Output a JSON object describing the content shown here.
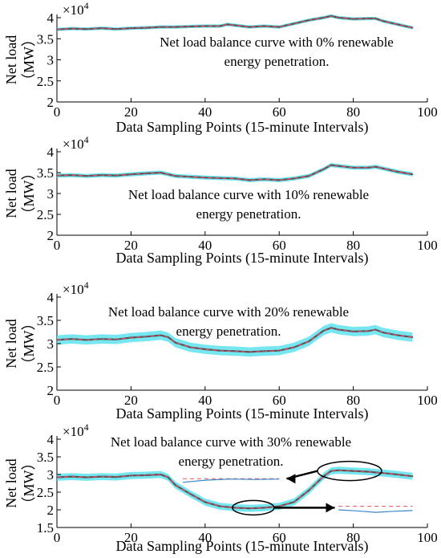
{
  "colors": {
    "band": "#5ee3ef",
    "line": "#555555",
    "dash": "#e0506a",
    "callout_solid": "#3a86c8",
    "callout_dash": "#e05060"
  },
  "chart_data": [
    {
      "type": "line",
      "annotation": [
        "Net load balance curve with 0% renewable",
        "energy penetration."
      ],
      "xlabel": "Data Sampling Points (15-minute Intervals)",
      "ylabel": [
        "Net load",
        "（MW）"
      ],
      "y_multiplier": "×10",
      "y_multiplier_exp": "4",
      "xlim": [
        0,
        100
      ],
      "ylim": [
        2,
        4
      ],
      "xticks": [
        "0",
        "20",
        "40",
        "60",
        "80",
        "100"
      ],
      "yticks": [
        "2",
        "2.5",
        "3",
        "3.5",
        "4"
      ],
      "x": [
        0,
        4,
        8,
        12,
        16,
        20,
        24,
        28,
        32,
        36,
        40,
        44,
        46,
        48,
        52,
        56,
        60,
        64,
        68,
        72,
        74,
        76,
        80,
        84,
        86,
        88,
        92,
        96
      ],
      "y": [
        3.72,
        3.74,
        3.73,
        3.75,
        3.73,
        3.75,
        3.76,
        3.78,
        3.78,
        3.79,
        3.8,
        3.8,
        3.84,
        3.82,
        3.78,
        3.8,
        3.78,
        3.86,
        3.94,
        4.0,
        4.04,
        4.0,
        3.97,
        3.98,
        3.98,
        3.92,
        3.84,
        3.76
      ],
      "band_halfwidth": 0.04
    },
    {
      "type": "line",
      "annotation": [
        "Net load balance curve with 10% renewable",
        "energy penetration."
      ],
      "xlabel": "Data Sampling Points (15-minute Intervals)",
      "ylabel": [
        "Net load",
        "（MW）"
      ],
      "y_multiplier": "×10",
      "y_multiplier_exp": "4",
      "xlim": [
        0,
        100
      ],
      "ylim": [
        2,
        4
      ],
      "xticks": [
        "0",
        "20",
        "40",
        "60",
        "80",
        "100"
      ],
      "yticks": [
        "2",
        "2.5",
        "3",
        "3.5",
        "4"
      ],
      "x": [
        0,
        4,
        8,
        12,
        16,
        20,
        24,
        28,
        32,
        36,
        40,
        44,
        48,
        52,
        56,
        60,
        64,
        68,
        72,
        74,
        76,
        80,
        84,
        86,
        88,
        92,
        96
      ],
      "y": [
        3.43,
        3.44,
        3.42,
        3.44,
        3.43,
        3.46,
        3.48,
        3.5,
        3.42,
        3.4,
        3.38,
        3.37,
        3.36,
        3.32,
        3.34,
        3.32,
        3.36,
        3.42,
        3.58,
        3.68,
        3.66,
        3.62,
        3.62,
        3.64,
        3.6,
        3.52,
        3.46
      ],
      "band_halfwidth": 0.05
    },
    {
      "type": "line",
      "annotation": [
        "Net load balance curve with 20% renewable",
        "energy penetration."
      ],
      "xlabel": "Data Sampling Points (15-minute Intervals)",
      "ylabel": [
        "Net load",
        "（MW）"
      ],
      "y_multiplier": "×10",
      "y_multiplier_exp": "4",
      "xlim": [
        0,
        100
      ],
      "ylim": [
        2,
        4
      ],
      "xticks": [
        "0",
        "20",
        "40",
        "60",
        "80",
        "100"
      ],
      "yticks": [
        "2",
        "2.5",
        "3",
        "3.5",
        "4"
      ],
      "x": [
        0,
        4,
        8,
        12,
        16,
        20,
        24,
        28,
        30,
        32,
        36,
        40,
        44,
        48,
        52,
        56,
        60,
        64,
        68,
        72,
        74,
        76,
        80,
        84,
        86,
        88,
        92,
        96
      ],
      "y": [
        3.08,
        3.1,
        3.08,
        3.1,
        3.09,
        3.13,
        3.15,
        3.18,
        3.14,
        3.02,
        2.92,
        2.88,
        2.85,
        2.84,
        2.82,
        2.84,
        2.85,
        2.92,
        3.05,
        3.28,
        3.34,
        3.3,
        3.26,
        3.27,
        3.3,
        3.24,
        3.18,
        3.14
      ],
      "band_halfwidth": 0.1
    },
    {
      "type": "line",
      "annotation": [
        "Net load balance curve with 30% renewable",
        "energy penetration."
      ],
      "xlabel": "Data Sampling Points (15-minute Intervals)",
      "ylabel": [
        "Net load",
        "（MW）"
      ],
      "y_multiplier": "×10",
      "y_multiplier_exp": "4",
      "xlim": [
        0,
        100
      ],
      "ylim": [
        1.5,
        4
      ],
      "xticks": [
        "0",
        "20",
        "40",
        "60",
        "80",
        "100"
      ],
      "yticks": [
        "1.5",
        "2",
        "2.5",
        "3",
        "3.5",
        "4"
      ],
      "x": [
        0,
        4,
        8,
        12,
        16,
        20,
        24,
        28,
        30,
        32,
        36,
        40,
        44,
        48,
        52,
        56,
        60,
        64,
        68,
        72,
        74,
        76,
        80,
        84,
        86,
        88,
        92,
        96
      ],
      "y": [
        2.92,
        2.94,
        2.92,
        2.94,
        2.93,
        2.97,
        2.98,
        3.0,
        2.92,
        2.7,
        2.45,
        2.22,
        2.1,
        2.06,
        2.04,
        2.06,
        2.1,
        2.22,
        2.55,
        2.95,
        3.1,
        3.12,
        3.1,
        3.08,
        3.06,
        3.04,
        3.0,
        2.95
      ],
      "band_halfwidth": 0.1,
      "callouts": [
        {
          "ellipse_center": [
            79,
            3.1
          ],
          "arrow_to": [
            62,
            2.88
          ],
          "inset_x": [
            34,
            60
          ],
          "inset_solid": [
            2.78,
            2.84,
            2.87,
            2.86,
            2.87
          ],
          "inset_dash": 2.88
        },
        {
          "ellipse_center": [
            53,
            2.06
          ],
          "arrow_to": [
            75,
            2.06
          ],
          "inset_x": [
            76,
            96
          ],
          "inset_solid": [
            2.0,
            1.97,
            1.93,
            1.96,
            1.98
          ],
          "inset_dash": 2.1
        }
      ]
    }
  ]
}
